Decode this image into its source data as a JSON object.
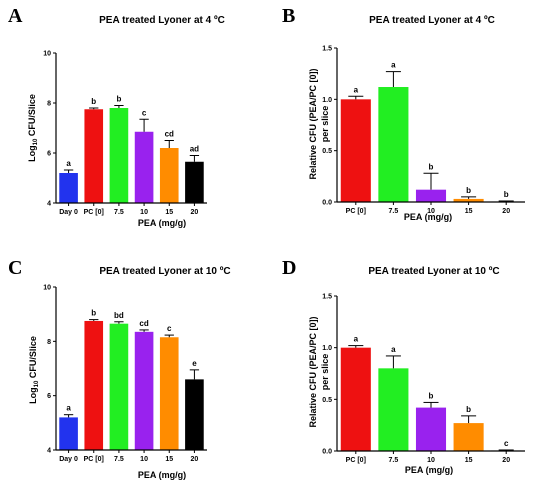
{
  "colors": {
    "day0": "#2233ee",
    "pc0": "#ee1111",
    "d7_5": "#22ee22",
    "d10": "#9922ee",
    "d15": "#ff8c00",
    "d20": "#000000",
    "error": "#000000"
  },
  "chart_data": [
    {
      "type": "bar",
      "panel": "A",
      "title": "PEA treated Lyoner at 4 ºC",
      "xlabel": "PEA (mg/g)",
      "ylabel": "Log10 CFU/Slice",
      "ylabel_main": "Log",
      "ylabel_sub": "10",
      "ylabel_rest": " CFU/Slice",
      "ylim": [
        4,
        10
      ],
      "yticks": [
        4,
        6,
        8,
        10
      ],
      "ytick_labels": [
        "4",
        "6",
        "8",
        "10"
      ],
      "categories": [
        "Day 0",
        "PC [0]",
        "7.5",
        "10",
        "15",
        "20"
      ],
      "values": [
        5.2,
        7.75,
        7.8,
        6.85,
        6.2,
        5.65
      ],
      "errors": [
        0.12,
        0.05,
        0.1,
        0.5,
        0.3,
        0.25
      ],
      "letters": [
        "a",
        "b",
        "b",
        "c",
        "cd",
        "ad"
      ],
      "bar_colors": [
        "day0",
        "pc0",
        "d7_5",
        "d10",
        "d15",
        "d20"
      ]
    },
    {
      "type": "bar",
      "panel": "B",
      "title": "PEA treated Lyoner at 4 ºC",
      "xlabel": "PEA (mg/g)",
      "ylabel": "Relative CFU (PEA/PC [0]) per slice",
      "ylabel_line1": "Relative CFU (PEA/PC [0])",
      "ylabel_line2": "per slice",
      "ylim": [
        0,
        1.5
      ],
      "yticks": [
        0,
        0.5,
        1.0,
        1.5
      ],
      "ytick_labels": [
        "0.0",
        "0.5",
        "1.0",
        "1.5"
      ],
      "categories": [
        "PC [0]",
        "7.5",
        "10",
        "15",
        "20"
      ],
      "values": [
        1.0,
        1.12,
        0.12,
        0.03,
        0.005
      ],
      "errors": [
        0.03,
        0.15,
        0.16,
        0.02,
        0.005
      ],
      "letters": [
        "a",
        "a",
        "b",
        "b",
        "b"
      ],
      "bar_colors": [
        "pc0",
        "d7_5",
        "d10",
        "d15",
        "d20"
      ]
    },
    {
      "type": "bar",
      "panel": "C",
      "title": "PEA treated Lyoner at 10 ºC",
      "xlabel": "PEA (mg/g)",
      "ylabel": "Log10 CFU/Slice",
      "ylabel_main": "Log",
      "ylabel_sub": "10",
      "ylabel_rest": " CFU/Slice",
      "ylim": [
        4,
        10
      ],
      "yticks": [
        4,
        6,
        8,
        10
      ],
      "ytick_labels": [
        "4",
        "6",
        "8",
        "10"
      ],
      "categories": [
        "Day 0",
        "PC [0]",
        "7.5",
        "10",
        "15",
        "20"
      ],
      "values": [
        5.2,
        8.75,
        8.65,
        8.35,
        8.15,
        6.6
      ],
      "errors": [
        0.1,
        0.05,
        0.07,
        0.07,
        0.08,
        0.35
      ],
      "letters": [
        "a",
        "b",
        "bd",
        "cd",
        "c",
        "e"
      ],
      "bar_colors": [
        "day0",
        "pc0",
        "d7_5",
        "d10",
        "d15",
        "d20"
      ]
    },
    {
      "type": "bar",
      "panel": "D",
      "title": "PEA treated Lyoner at 10 ºC",
      "xlabel": "PEA (mg/g)",
      "ylabel": "Relative CFU (PEA/PC [0]) per slice",
      "ylabel_line1": "Relative CFU (PEA/PC [0])",
      "ylabel_line2": "per slice",
      "ylim": [
        0,
        1.5
      ],
      "yticks": [
        0,
        0.5,
        1.0,
        1.5
      ],
      "ytick_labels": [
        "0.0",
        "0.5",
        "1.0",
        "1.5"
      ],
      "categories": [
        "PC [0]",
        "7.5",
        "10",
        "15",
        "20"
      ],
      "values": [
        1.0,
        0.8,
        0.42,
        0.27,
        0.005
      ],
      "errors": [
        0.02,
        0.12,
        0.05,
        0.07,
        0.005
      ],
      "letters": [
        "a",
        "a",
        "b",
        "b",
        "c"
      ],
      "bar_colors": [
        "pc0",
        "d7_5",
        "d10",
        "d15",
        "d20"
      ]
    }
  ]
}
